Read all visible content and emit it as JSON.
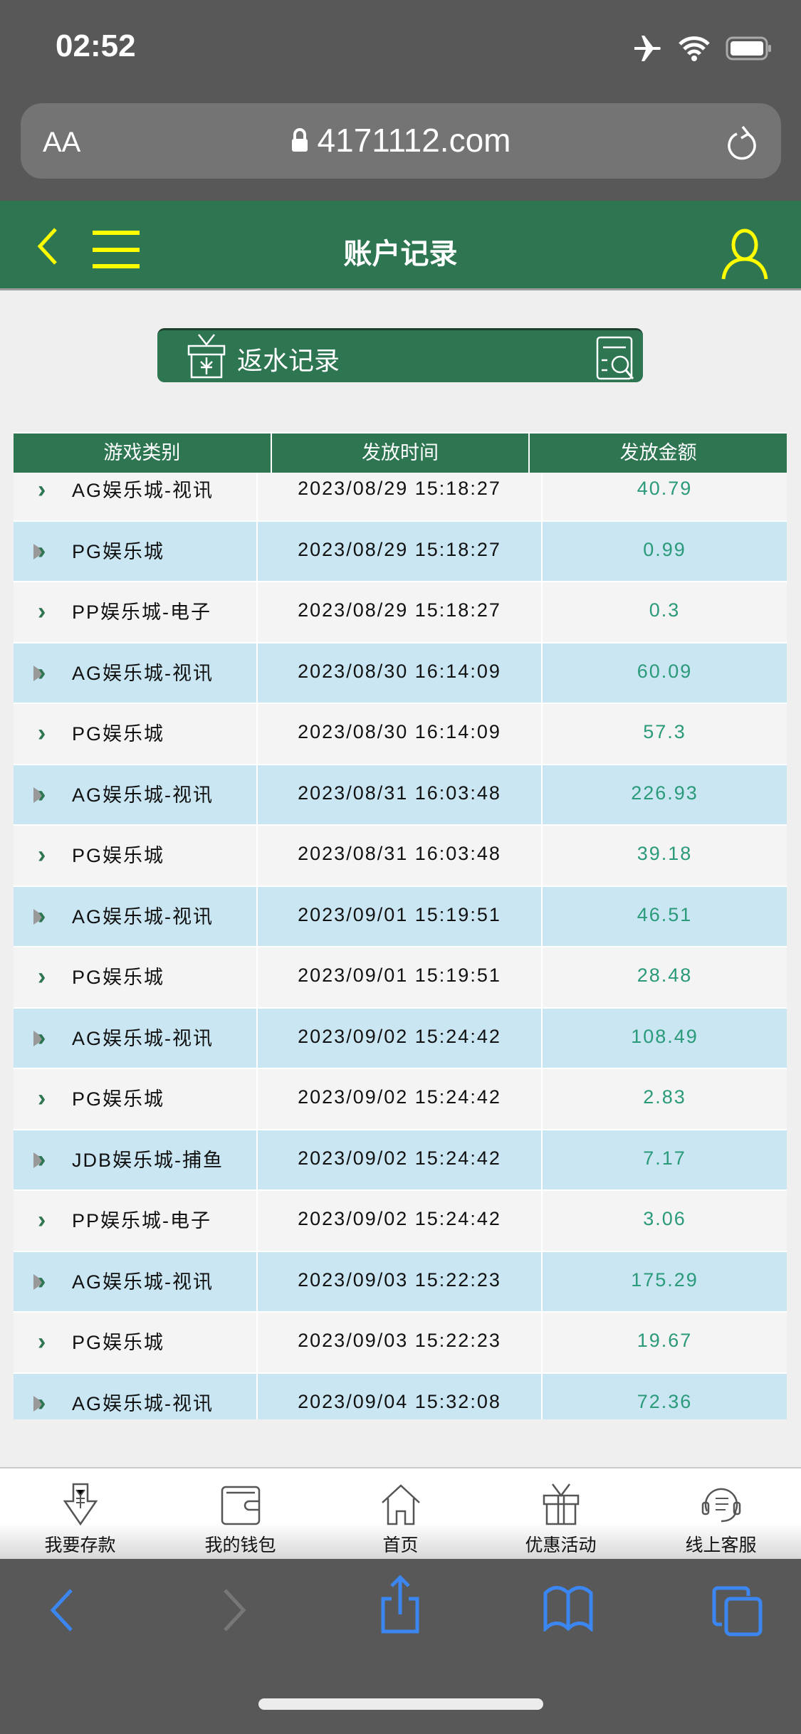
{
  "status_bar": {
    "time": "02:52",
    "icons": [
      "airplane-icon",
      "wifi-icon",
      "battery-icon"
    ]
  },
  "browser": {
    "text_size_label": "AA",
    "url": "4171112.com"
  },
  "header": {
    "title": "账户记录"
  },
  "rebate_button": {
    "label": "返水记录"
  },
  "table": {
    "columns": [
      "游戏类别",
      "发放时间",
      "发放金额"
    ],
    "rows": [
      {
        "game": "AG娱乐城-视讯",
        "time": "2023/08/29 15:18:27",
        "amount": "40.79"
      },
      {
        "game": "PG娱乐城",
        "time": "2023/08/29 15:18:27",
        "amount": "0.99"
      },
      {
        "game": "PP娱乐城-电子",
        "time": "2023/08/29 15:18:27",
        "amount": "0.3"
      },
      {
        "game": "AG娱乐城-视讯",
        "time": "2023/08/30 16:14:09",
        "amount": "60.09"
      },
      {
        "game": "PG娱乐城",
        "time": "2023/08/30 16:14:09",
        "amount": "57.3"
      },
      {
        "game": "AG娱乐城-视讯",
        "time": "2023/08/31 16:03:48",
        "amount": "226.93"
      },
      {
        "game": "PG娱乐城",
        "time": "2023/08/31 16:03:48",
        "amount": "39.18"
      },
      {
        "game": "AG娱乐城-视讯",
        "time": "2023/09/01 15:19:51",
        "amount": "46.51"
      },
      {
        "game": "PG娱乐城",
        "time": "2023/09/01 15:19:51",
        "amount": "28.48"
      },
      {
        "game": "AG娱乐城-视讯",
        "time": "2023/09/02 15:24:42",
        "amount": "108.49"
      },
      {
        "game": "PG娱乐城",
        "time": "2023/09/02 15:24:42",
        "amount": "2.83"
      },
      {
        "game": "JDB娱乐城-捕鱼",
        "time": "2023/09/02 15:24:42",
        "amount": "7.17"
      },
      {
        "game": "PP娱乐城-电子",
        "time": "2023/09/02 15:24:42",
        "amount": "3.06"
      },
      {
        "game": "AG娱乐城-视讯",
        "time": "2023/09/03 15:22:23",
        "amount": "175.29"
      },
      {
        "game": "PG娱乐城",
        "time": "2023/09/03 15:22:23",
        "amount": "19.67"
      },
      {
        "game": "AG娱乐城-视讯",
        "time": "2023/09/04 15:32:08",
        "amount": "72.36"
      }
    ]
  },
  "bottom_nav": [
    {
      "label": "我要存款",
      "icon": "deposit-icon"
    },
    {
      "label": "我的钱包",
      "icon": "wallet-icon"
    },
    {
      "label": "首页",
      "icon": "home-icon"
    },
    {
      "label": "优惠活动",
      "icon": "gift-icon"
    },
    {
      "label": "线上客服",
      "icon": "support-icon"
    }
  ],
  "colors": {
    "brand_green": "#2e7552",
    "accent_yellow": "#ffff00",
    "amount": "#2a9a7a",
    "row_alt": "#c9e6f2",
    "safari_blue": "#3b86f0"
  }
}
